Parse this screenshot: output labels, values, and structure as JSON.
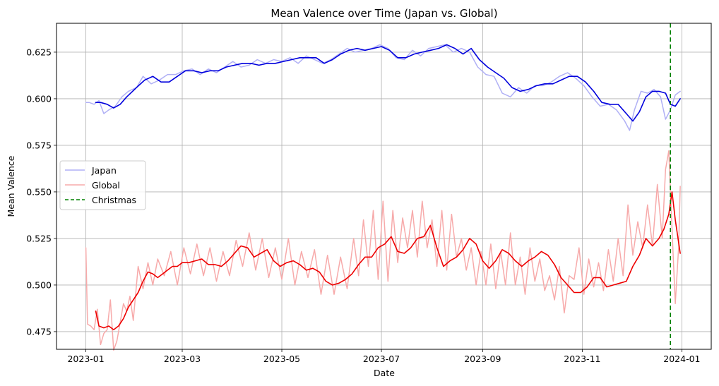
{
  "chart_data": {
    "type": "line",
    "title": "Mean Valence over Time (Japan vs. Global)",
    "xlabel": "Date",
    "ylabel": "Mean Valence",
    "x_ticks": [
      "2023-01",
      "2023-03",
      "2023-05",
      "2023-07",
      "2023-09",
      "2023-11",
      "2024-01"
    ],
    "y_ticks": [
      "0.475",
      "0.500",
      "0.525",
      "0.550",
      "0.575",
      "0.600",
      "0.625"
    ],
    "xlim": [
      "2022-12-14",
      "2024-01-19"
    ],
    "ylim": [
      0.4655,
      0.6405
    ],
    "grid": true,
    "legend_position": "center-left",
    "legend": [
      "Japan",
      "Global",
      "Christmas"
    ],
    "colors": {
      "japan_raw": "#b0b0f5",
      "japan_smooth": "#0000dd",
      "global_raw": "#f7aaaa",
      "global_smooth": "#ee0000",
      "christmas": "#008000",
      "grid": "#b0b0b0"
    },
    "christmas_date": "2023-12-25",
    "series": [
      {
        "name": "Japan",
        "style": "raw",
        "x": [
          "2023-01-01",
          "2023-01-03",
          "2023-01-06",
          "2023-01-09",
          "2023-01-12",
          "2023-01-15",
          "2023-01-19",
          "2023-01-23",
          "2023-01-27",
          "2023-02-01",
          "2023-02-05",
          "2023-02-10",
          "2023-02-15",
          "2023-02-20",
          "2023-02-25",
          "2023-03-02",
          "2023-03-07",
          "2023-03-12",
          "2023-03-17",
          "2023-03-22",
          "2023-03-27",
          "2023-04-01",
          "2023-04-06",
          "2023-04-11",
          "2023-04-16",
          "2023-04-21",
          "2023-04-26",
          "2023-05-01",
          "2023-05-06",
          "2023-05-11",
          "2023-05-16",
          "2023-05-21",
          "2023-05-26",
          "2023-05-31",
          "2023-06-05",
          "2023-06-10",
          "2023-06-15",
          "2023-06-20",
          "2023-06-25",
          "2023-06-30",
          "2023-07-05",
          "2023-07-10",
          "2023-07-15",
          "2023-07-20",
          "2023-07-25",
          "2023-07-30",
          "2023-08-04",
          "2023-08-09",
          "2023-08-14",
          "2023-08-19",
          "2023-08-24",
          "2023-08-29",
          "2023-09-03",
          "2023-09-08",
          "2023-09-13",
          "2023-09-18",
          "2023-09-23",
          "2023-09-28",
          "2023-10-03",
          "2023-10-08",
          "2023-10-13",
          "2023-10-18",
          "2023-10-23",
          "2023-10-28",
          "2023-11-02",
          "2023-11-07",
          "2023-11-12",
          "2023-11-17",
          "2023-11-22",
          "2023-11-27",
          "2023-11-30",
          "2023-12-03",
          "2023-12-07",
          "2023-12-11",
          "2023-12-15",
          "2023-12-19",
          "2023-12-22",
          "2023-12-25",
          "2023-12-28",
          "2023-12-31"
        ],
        "values": [
          0.598,
          0.598,
          0.597,
          0.599,
          0.592,
          0.594,
          0.596,
          0.601,
          0.604,
          0.606,
          0.612,
          0.608,
          0.61,
          0.613,
          0.613,
          0.615,
          0.616,
          0.613,
          0.616,
          0.614,
          0.617,
          0.62,
          0.617,
          0.618,
          0.621,
          0.619,
          0.621,
          0.62,
          0.622,
          0.619,
          0.623,
          0.621,
          0.619,
          0.621,
          0.624,
          0.627,
          0.625,
          0.626,
          0.627,
          0.629,
          0.627,
          0.622,
          0.621,
          0.626,
          0.623,
          0.627,
          0.628,
          0.629,
          0.625,
          0.627,
          0.625,
          0.617,
          0.613,
          0.612,
          0.603,
          0.601,
          0.606,
          0.603,
          0.607,
          0.607,
          0.609,
          0.612,
          0.614,
          0.611,
          0.607,
          0.601,
          0.596,
          0.597,
          0.594,
          0.588,
          0.583,
          0.594,
          0.604,
          0.603,
          0.605,
          0.601,
          0.589,
          0.594,
          0.602,
          0.604
        ]
      },
      {
        "name": "Japan",
        "style": "smooth",
        "x": [
          "2023-01-07",
          "2023-01-10",
          "2023-01-14",
          "2023-01-18",
          "2023-01-22",
          "2023-01-26",
          "2023-02-01",
          "2023-02-06",
          "2023-02-11",
          "2023-02-16",
          "2023-02-21",
          "2023-02-26",
          "2023-03-03",
          "2023-03-08",
          "2023-03-13",
          "2023-03-18",
          "2023-03-23",
          "2023-03-28",
          "2023-04-02",
          "2023-04-07",
          "2023-04-12",
          "2023-04-17",
          "2023-04-22",
          "2023-04-27",
          "2023-05-02",
          "2023-05-07",
          "2023-05-12",
          "2023-05-17",
          "2023-05-22",
          "2023-05-27",
          "2023-06-01",
          "2023-06-06",
          "2023-06-11",
          "2023-06-16",
          "2023-06-21",
          "2023-06-26",
          "2023-07-01",
          "2023-07-06",
          "2023-07-11",
          "2023-07-16",
          "2023-07-21",
          "2023-07-26",
          "2023-07-31",
          "2023-08-05",
          "2023-08-10",
          "2023-08-15",
          "2023-08-20",
          "2023-08-25",
          "2023-08-30",
          "2023-09-04",
          "2023-09-09",
          "2023-09-14",
          "2023-09-19",
          "2023-09-24",
          "2023-09-29",
          "2023-10-04",
          "2023-10-09",
          "2023-10-14",
          "2023-10-19",
          "2023-10-24",
          "2023-10-29",
          "2023-11-03",
          "2023-11-08",
          "2023-11-13",
          "2023-11-18",
          "2023-11-23",
          "2023-11-28",
          "2023-12-02",
          "2023-12-06",
          "2023-12-10",
          "2023-12-14",
          "2023-12-18",
          "2023-12-22",
          "2023-12-25",
          "2023-12-28",
          "2023-12-31"
        ],
        "values": [
          0.598,
          0.598,
          0.597,
          0.595,
          0.597,
          0.601,
          0.606,
          0.61,
          0.612,
          0.609,
          0.609,
          0.612,
          0.615,
          0.615,
          0.614,
          0.615,
          0.615,
          0.617,
          0.618,
          0.619,
          0.619,
          0.618,
          0.619,
          0.619,
          0.62,
          0.621,
          0.622,
          0.622,
          0.622,
          0.619,
          0.621,
          0.624,
          0.626,
          0.627,
          0.626,
          0.627,
          0.628,
          0.626,
          0.622,
          0.622,
          0.624,
          0.625,
          0.626,
          0.627,
          0.629,
          0.627,
          0.624,
          0.627,
          0.621,
          0.617,
          0.614,
          0.611,
          0.606,
          0.604,
          0.605,
          0.607,
          0.608,
          0.608,
          0.61,
          0.612,
          0.612,
          0.609,
          0.604,
          0.598,
          0.597,
          0.597,
          0.592,
          0.588,
          0.593,
          0.601,
          0.604,
          0.604,
          0.603,
          0.597,
          0.596,
          0.6
        ]
      },
      {
        "name": "Global",
        "style": "raw",
        "x": [
          "2023-01-01",
          "2023-01-02",
          "2023-01-04",
          "2023-01-06",
          "2023-01-08",
          "2023-01-10",
          "2023-01-12",
          "2023-01-14",
          "2023-01-16",
          "2023-01-18",
          "2023-01-20",
          "2023-01-22",
          "2023-01-24",
          "2023-01-26",
          "2023-01-28",
          "2023-01-30",
          "2023-02-02",
          "2023-02-05",
          "2023-02-08",
          "2023-02-11",
          "2023-02-14",
          "2023-02-18",
          "2023-02-22",
          "2023-02-26",
          "2023-03-02",
          "2023-03-06",
          "2023-03-10",
          "2023-03-14",
          "2023-03-18",
          "2023-03-22",
          "2023-03-26",
          "2023-03-30",
          "2023-04-03",
          "2023-04-07",
          "2023-04-11",
          "2023-04-15",
          "2023-04-19",
          "2023-04-23",
          "2023-04-27",
          "2023-05-01",
          "2023-05-05",
          "2023-05-09",
          "2023-05-13",
          "2023-05-17",
          "2023-05-21",
          "2023-05-25",
          "2023-05-29",
          "2023-06-02",
          "2023-06-06",
          "2023-06-10",
          "2023-06-14",
          "2023-06-17",
          "2023-06-20",
          "2023-06-23",
          "2023-06-26",
          "2023-06-29",
          "2023-07-02",
          "2023-07-05",
          "2023-07-08",
          "2023-07-11",
          "2023-07-14",
          "2023-07-17",
          "2023-07-20",
          "2023-07-23",
          "2023-07-26",
          "2023-07-29",
          "2023-08-01",
          "2023-08-04",
          "2023-08-07",
          "2023-08-10",
          "2023-08-13",
          "2023-08-16",
          "2023-08-19",
          "2023-08-22",
          "2023-08-25",
          "2023-08-28",
          "2023-08-31",
          "2023-09-03",
          "2023-09-06",
          "2023-09-09",
          "2023-09-12",
          "2023-09-15",
          "2023-09-18",
          "2023-09-21",
          "2023-09-24",
          "2023-09-27",
          "2023-09-30",
          "2023-10-03",
          "2023-10-06",
          "2023-10-09",
          "2023-10-12",
          "2023-10-15",
          "2023-10-18",
          "2023-10-21",
          "2023-10-24",
          "2023-10-27",
          "2023-10-30",
          "2023-11-02",
          "2023-11-05",
          "2023-11-08",
          "2023-11-11",
          "2023-11-14",
          "2023-11-17",
          "2023-11-20",
          "2023-11-23",
          "2023-11-26",
          "2023-11-29",
          "2023-12-02",
          "2023-12-05",
          "2023-12-08",
          "2023-12-11",
          "2023-12-14",
          "2023-12-17",
          "2023-12-20",
          "2023-12-22",
          "2023-12-24",
          "2023-12-26",
          "2023-12-28",
          "2023-12-30",
          "2023-12-31"
        ],
        "values": [
          0.52,
          0.479,
          0.478,
          0.476,
          0.487,
          0.468,
          0.474,
          0.476,
          0.492,
          0.465,
          0.47,
          0.48,
          0.49,
          0.486,
          0.494,
          0.481,
          0.51,
          0.498,
          0.512,
          0.5,
          0.514,
          0.505,
          0.518,
          0.5,
          0.52,
          0.506,
          0.522,
          0.505,
          0.52,
          0.502,
          0.518,
          0.505,
          0.524,
          0.51,
          0.528,
          0.508,
          0.525,
          0.504,
          0.52,
          0.503,
          0.525,
          0.5,
          0.518,
          0.504,
          0.519,
          0.495,
          0.516,
          0.495,
          0.515,
          0.498,
          0.525,
          0.505,
          0.535,
          0.51,
          0.54,
          0.503,
          0.545,
          0.502,
          0.54,
          0.512,
          0.536,
          0.52,
          0.54,
          0.515,
          0.545,
          0.52,
          0.535,
          0.51,
          0.54,
          0.508,
          0.538,
          0.515,
          0.525,
          0.508,
          0.52,
          0.5,
          0.518,
          0.5,
          0.522,
          0.498,
          0.518,
          0.5,
          0.528,
          0.5,
          0.515,
          0.495,
          0.52,
          0.502,
          0.514,
          0.497,
          0.505,
          0.492,
          0.51,
          0.485,
          0.505,
          0.503,
          0.52,
          0.495,
          0.514,
          0.499,
          0.512,
          0.497,
          0.519,
          0.502,
          0.525,
          0.505,
          0.543,
          0.516,
          0.534,
          0.52,
          0.543,
          0.521,
          0.554,
          0.525,
          0.562,
          0.572,
          0.53,
          0.49,
          0.52,
          0.553
        ]
      },
      {
        "name": "Global",
        "style": "smooth",
        "x": [
          "2023-01-07",
          "2023-01-09",
          "2023-01-12",
          "2023-01-15",
          "2023-01-18",
          "2023-01-21",
          "2023-01-24",
          "2023-01-27",
          "2023-01-30",
          "2023-02-02",
          "2023-02-05",
          "2023-02-08",
          "2023-02-11",
          "2023-02-14",
          "2023-02-17",
          "2023-02-20",
          "2023-02-23",
          "2023-02-26",
          "2023-03-01",
          "2023-03-05",
          "2023-03-09",
          "2023-03-13",
          "2023-03-17",
          "2023-03-21",
          "2023-03-25",
          "2023-03-29",
          "2023-04-02",
          "2023-04-06",
          "2023-04-10",
          "2023-04-14",
          "2023-04-18",
          "2023-04-22",
          "2023-04-26",
          "2023-04-30",
          "2023-05-04",
          "2023-05-08",
          "2023-05-12",
          "2023-05-16",
          "2023-05-20",
          "2023-05-24",
          "2023-05-28",
          "2023-06-01",
          "2023-06-05",
          "2023-06-09",
          "2023-06-13",
          "2023-06-17",
          "2023-06-21",
          "2023-06-25",
          "2023-06-29",
          "2023-07-03",
          "2023-07-07",
          "2023-07-11",
          "2023-07-15",
          "2023-07-19",
          "2023-07-23",
          "2023-07-27",
          "2023-07-31",
          "2023-08-04",
          "2023-08-08",
          "2023-08-12",
          "2023-08-16",
          "2023-08-20",
          "2023-08-24",
          "2023-08-28",
          "2023-09-01",
          "2023-09-05",
          "2023-09-09",
          "2023-09-13",
          "2023-09-17",
          "2023-09-21",
          "2023-09-25",
          "2023-09-29",
          "2023-10-03",
          "2023-10-07",
          "2023-10-11",
          "2023-10-15",
          "2023-10-19",
          "2023-10-23",
          "2023-10-27",
          "2023-10-31",
          "2023-11-04",
          "2023-11-08",
          "2023-11-12",
          "2023-11-16",
          "2023-11-20",
          "2023-11-24",
          "2023-11-28",
          "2023-12-02",
          "2023-12-06",
          "2023-12-10",
          "2023-12-14",
          "2023-12-18",
          "2023-12-21",
          "2023-12-24",
          "2023-12-26",
          "2023-12-28",
          "2023-12-31"
        ],
        "values": [
          0.486,
          0.478,
          0.477,
          0.478,
          0.476,
          0.478,
          0.482,
          0.488,
          0.492,
          0.496,
          0.502,
          0.507,
          0.506,
          0.504,
          0.506,
          0.508,
          0.51,
          0.51,
          0.512,
          0.512,
          0.513,
          0.514,
          0.511,
          0.511,
          0.51,
          0.513,
          0.517,
          0.521,
          0.52,
          0.515,
          0.517,
          0.519,
          0.513,
          0.51,
          0.512,
          0.513,
          0.511,
          0.508,
          0.509,
          0.507,
          0.502,
          0.5,
          0.501,
          0.503,
          0.506,
          0.511,
          0.515,
          0.515,
          0.52,
          0.522,
          0.526,
          0.518,
          0.517,
          0.52,
          0.525,
          0.526,
          0.532,
          0.52,
          0.51,
          0.513,
          0.515,
          0.519,
          0.525,
          0.522,
          0.513,
          0.509,
          0.513,
          0.519,
          0.517,
          0.513,
          0.51,
          0.513,
          0.515,
          0.518,
          0.516,
          0.511,
          0.504,
          0.5,
          0.496,
          0.496,
          0.499,
          0.504,
          0.504,
          0.499,
          0.5,
          0.501,
          0.502,
          0.51,
          0.516,
          0.525,
          0.521,
          0.525,
          0.53,
          0.538,
          0.55,
          0.535,
          0.517
        ]
      }
    ]
  }
}
